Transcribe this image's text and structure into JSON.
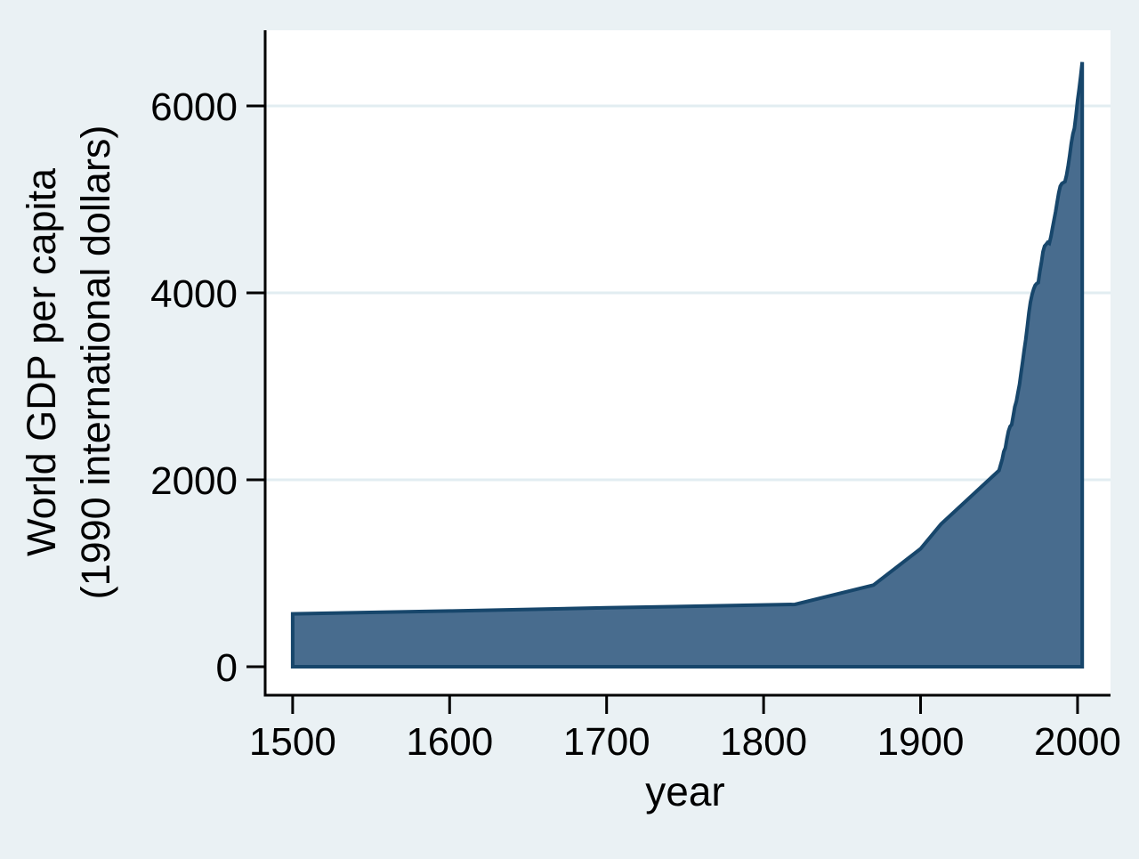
{
  "figure": {
    "background_color": "#eaf1f4",
    "plot_background_color": "#ffffff",
    "grid_color": "#e2edf1",
    "axis_color": "#000000",
    "text_color": "#000000"
  },
  "chart_data": {
    "type": "area",
    "title": "",
    "xlabel": "year",
    "ylabel": "World GDP per capita (1990 international dollars)",
    "ylabel_line1": "World GDP per capita",
    "ylabel_line2": "(1990 international dollars)",
    "x_ticks": [
      1500,
      1600,
      1700,
      1800,
      1900,
      2000
    ],
    "y_ticks": [
      0,
      2000,
      4000,
      6000
    ],
    "y_gridlines": [
      2000,
      4000,
      6000
    ],
    "xlim": [
      1482.5,
      2021
    ],
    "ylim": [
      -305,
      6810
    ],
    "grid": true,
    "legend": "none",
    "series": [
      {
        "name": "World GDP per capita (1990 international dollars)",
        "fill_color": "#486c8e",
        "line_color": "#17466b",
        "baseline": 0,
        "points": [
          [
            1500,
            566
          ],
          [
            1600,
            596
          ],
          [
            1700,
            630
          ],
          [
            1820,
            667
          ],
          [
            1870,
            873
          ],
          [
            1900,
            1262
          ],
          [
            1913,
            1526
          ],
          [
            1950,
            2100
          ],
          [
            1951,
            2160
          ],
          [
            1952,
            2220
          ],
          [
            1953,
            2300
          ],
          [
            1954,
            2340
          ],
          [
            1955,
            2440
          ],
          [
            1956,
            2520
          ],
          [
            1957,
            2570
          ],
          [
            1958,
            2590
          ],
          [
            1959,
            2680
          ],
          [
            1960,
            2780
          ],
          [
            1961,
            2840
          ],
          [
            1962,
            2930
          ],
          [
            1963,
            3020
          ],
          [
            1964,
            3140
          ],
          [
            1965,
            3260
          ],
          [
            1966,
            3390
          ],
          [
            1967,
            3500
          ],
          [
            1968,
            3640
          ],
          [
            1969,
            3790
          ],
          [
            1970,
            3900
          ],
          [
            1971,
            3980
          ],
          [
            1972,
            4040
          ],
          [
            1973,
            4080
          ],
          [
            1974,
            4100
          ],
          [
            1975,
            4110
          ],
          [
            1976,
            4230
          ],
          [
            1977,
            4330
          ],
          [
            1978,
            4440
          ],
          [
            1979,
            4500
          ],
          [
            1980,
            4520
          ],
          [
            1981,
            4540
          ],
          [
            1982,
            4530
          ],
          [
            1983,
            4600
          ],
          [
            1984,
            4690
          ],
          [
            1985,
            4780
          ],
          [
            1986,
            4870
          ],
          [
            1987,
            4970
          ],
          [
            1988,
            5070
          ],
          [
            1989,
            5140
          ],
          [
            1990,
            5170
          ],
          [
            1991,
            5180
          ],
          [
            1992,
            5190
          ],
          [
            1993,
            5260
          ],
          [
            1994,
            5360
          ],
          [
            1995,
            5470
          ],
          [
            1996,
            5600
          ],
          [
            1997,
            5700
          ],
          [
            1998,
            5760
          ],
          [
            1999,
            5900
          ],
          [
            2000,
            6060
          ],
          [
            2001,
            6180
          ],
          [
            2002,
            6320
          ],
          [
            2003,
            6470
          ]
        ]
      }
    ]
  }
}
